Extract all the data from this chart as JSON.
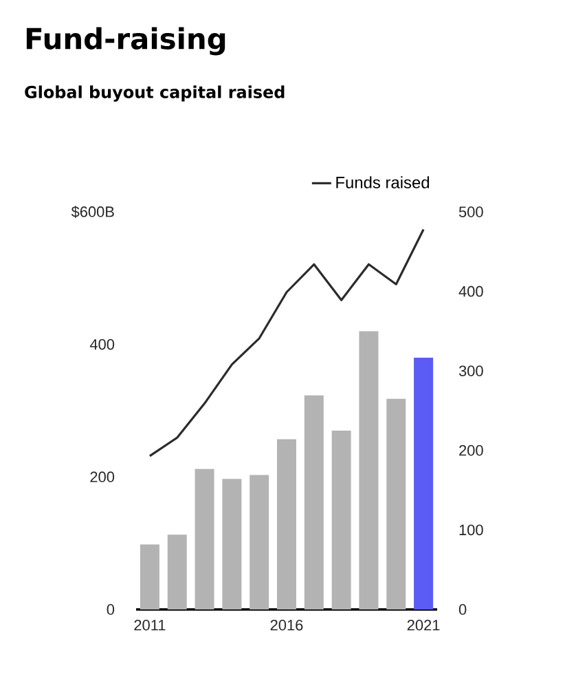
{
  "chart_data": {
    "type": "bar",
    "title": "Fund-raising",
    "subtitle": "Global buyout capital raised",
    "categories": [
      "2011",
      null,
      null,
      null,
      null,
      "2016",
      null,
      null,
      null,
      null,
      "2021"
    ],
    "series": [
      {
        "colors": [
          "#b3b3b3",
          "#b3b3b3",
          "#b3b3b3",
          "#b3b3b3",
          "#b3b3b3",
          "#b3b3b3",
          "#b3b3b3",
          "#b3b3b3",
          "#b3b3b3",
          "#b3b3b3",
          "#5b5bf5"
        ],
        "values": [
          98,
          113,
          212,
          197,
          203,
          257,
          323,
          270,
          420,
          318,
          380
        ]
      },
      {
        "type": "line",
        "name": "Funds raised",
        "color": "#2b2b2b",
        "axis": "y2",
        "values": [
          193,
          216,
          259,
          308,
          341,
          399,
          434,
          389,
          434,
          409,
          478
        ]
      }
    ],
    "ylim": [
      0,
      600
    ],
    "yticks": [
      0,
      200,
      400,
      {
        "value": 600,
        "label": "$600B"
      }
    ],
    "y2lim": [
      0,
      500
    ],
    "y2ticks": [
      0,
      100,
      200,
      300,
      400,
      500
    ],
    "legend": "top right"
  }
}
